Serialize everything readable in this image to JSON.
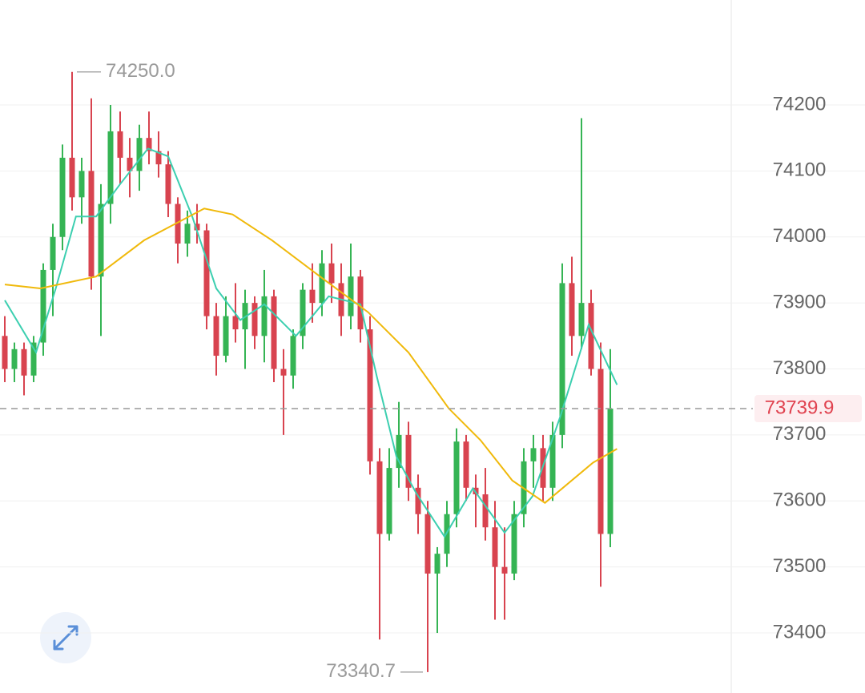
{
  "chart_data": {
    "type": "candlestick",
    "up_color": "#35b454",
    "down_color": "#d8434f",
    "xlim": [
      -0.5,
      75.5
    ],
    "ylim": [
      73309,
      74359
    ],
    "yticks": [
      73400,
      73500,
      73600,
      73700,
      73800,
      73900,
      74000,
      74100,
      74200
    ],
    "grid": true,
    "candles": [
      [
        73850,
        73880,
        73780,
        73800
      ],
      [
        73800,
        73840,
        73780,
        73830
      ],
      [
        73830,
        73840,
        73760,
        73790
      ],
      [
        73790,
        73850,
        73780,
        73840
      ],
      [
        73840,
        73960,
        73820,
        73950
      ],
      [
        73950,
        74020,
        73880,
        74000
      ],
      [
        74000,
        74140,
        73980,
        74120
      ],
      [
        74120,
        74250,
        74040,
        74060
      ],
      [
        74060,
        74120,
        74020,
        74100
      ],
      [
        74100,
        74210,
        73920,
        73940
      ],
      [
        73940,
        74080,
        73850,
        74050
      ],
      [
        74050,
        74200,
        74020,
        74160
      ],
      [
        74160,
        74190,
        74080,
        74120
      ],
      [
        74120,
        74150,
        74060,
        74100
      ],
      [
        74100,
        74170,
        74070,
        74150
      ],
      [
        74150,
        74190,
        74110,
        74130
      ],
      [
        74130,
        74160,
        74090,
        74110
      ],
      [
        74110,
        74130,
        74030,
        74050
      ],
      [
        74050,
        74060,
        73960,
        73990
      ],
      [
        73990,
        74040,
        73970,
        74020
      ],
      [
        74020,
        74050,
        73990,
        74010
      ],
      [
        74010,
        74020,
        73860,
        73880
      ],
      [
        73880,
        73900,
        73790,
        73820
      ],
      [
        73820,
        73910,
        73810,
        73880
      ],
      [
        73880,
        73930,
        73840,
        73860
      ],
      [
        73860,
        73920,
        73800,
        73900
      ],
      [
        73900,
        73910,
        73830,
        73850
      ],
      [
        73850,
        73950,
        73810,
        73910
      ],
      [
        73910,
        73920,
        73780,
        73800
      ],
      [
        73800,
        73830,
        73700,
        73790
      ],
      [
        73790,
        73860,
        73770,
        73850
      ],
      [
        73850,
        73930,
        73830,
        73920
      ],
      [
        73920,
        73960,
        73870,
        73900
      ],
      [
        73900,
        73980,
        73880,
        73960
      ],
      [
        73960,
        73990,
        73900,
        73930
      ],
      [
        73930,
        73960,
        73850,
        73880
      ],
      [
        73880,
        73990,
        73860,
        73940
      ],
      [
        73940,
        73950,
        73840,
        73860
      ],
      [
        73860,
        73880,
        73640,
        73660
      ],
      [
        73660,
        73680,
        73390,
        73550
      ],
      [
        73550,
        73680,
        73540,
        73650
      ],
      [
        73650,
        73750,
        73620,
        73700
      ],
      [
        73700,
        73720,
        73600,
        73620
      ],
      [
        73620,
        73640,
        73550,
        73580
      ],
      [
        73580,
        73600,
        73340.7,
        73490
      ],
      [
        73490,
        73530,
        73400,
        73520
      ],
      [
        73520,
        73600,
        73500,
        73580
      ],
      [
        73580,
        73710,
        73560,
        73690
      ],
      [
        73690,
        73700,
        73600,
        73620
      ],
      [
        73620,
        73640,
        73560,
        73610
      ],
      [
        73610,
        73650,
        73540,
        73560
      ],
      [
        73560,
        73600,
        73420,
        73500
      ],
      [
        73500,
        73560,
        73420,
        73490
      ],
      [
        73490,
        73600,
        73480,
        73580
      ],
      [
        73580,
        73680,
        73560,
        73660
      ],
      [
        73660,
        73700,
        73620,
        73680
      ],
      [
        73680,
        73700,
        73600,
        73620
      ],
      [
        73620,
        73720,
        73600,
        73700
      ],
      [
        73700,
        73960,
        73680,
        73930
      ],
      [
        73930,
        73970,
        73820,
        73850
      ],
      [
        73850,
        74180,
        73830,
        73900
      ],
      [
        73900,
        73920,
        73790,
        73800
      ],
      [
        73800,
        73840,
        73470,
        73550
      ],
      [
        73550,
        73830,
        73530,
        73739.9
      ]
    ],
    "lines": [
      {
        "color": "#3ccfb0",
        "x": [
          0,
          3.25,
          5.3,
          7.4,
          9.5,
          12,
          14.9,
          17,
          19.5,
          22,
          24.5,
          27,
          30.3,
          33.7,
          37,
          38.7,
          40.75,
          42.8,
          45.75,
          48.7,
          52,
          54.9,
          57.8,
          60.75,
          63.7
        ],
        "values": [
          73904,
          73825,
          73922,
          74031,
          74031,
          74080,
          74134,
          74122,
          74031,
          73922,
          73874,
          73898,
          73850,
          73910,
          73898,
          73789,
          73667,
          73612,
          73546,
          73619,
          73552,
          73607,
          73728,
          73867,
          73776
        ]
      },
      {
        "color": "#f0b90b",
        "x": [
          0,
          3.7,
          9.5,
          14.5,
          20.75,
          23.7,
          27.8,
          32.8,
          37.8,
          42,
          46.2,
          49.5,
          52.8,
          56.2,
          61.2,
          63.7
        ],
        "values": [
          73928,
          73922,
          73940,
          73995,
          74043,
          74034,
          73995,
          73940,
          73886,
          73825,
          73740,
          73692,
          73631,
          73597,
          73658,
          73679
        ]
      }
    ],
    "annotations": [
      {
        "x": 7,
        "value": 74250,
        "label": "74250.0",
        "side": "right"
      },
      {
        "x": 44,
        "value": 73340.7,
        "label": "73340.7",
        "side": "left"
      }
    ],
    "last_price": 73739.9,
    "last_price_color": "#e0424f"
  }
}
